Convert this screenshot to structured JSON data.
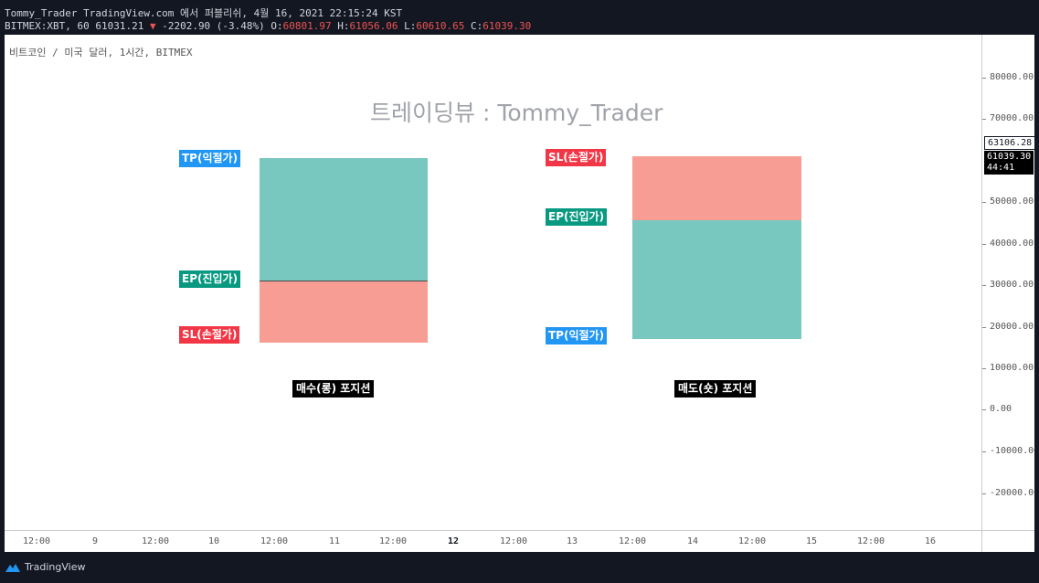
{
  "header": {
    "title_line": "Tommy_Trader TradingView.com 에서 퍼블리쉬, 4월 16, 2021 22:15:24 KST",
    "quote_prefix": "BITMEX:XBT, 60 61031.21",
    "change_arrow": "▼",
    "change_text": "-2202.90 (-3.48%)",
    "ohlc": {
      "o_label": "O:",
      "o_value": "60801.97",
      "h_label": "H:",
      "h_value": "61056.06",
      "l_label": "L:",
      "l_value": "60610.65",
      "c_label": "C:",
      "c_value": "61039.30"
    }
  },
  "chart": {
    "symbol_desc": "비트코인 / 미국 달러, 1시간, BITMEX",
    "watermark": "트레이딩뷰 : Tommy_Trader",
    "long_position": {
      "tp_label": "TP(익절가)",
      "ep_label": "EP(진입가)",
      "sl_label": "SL(손절가)",
      "caption": "매수(롱) 포지션"
    },
    "short_position": {
      "sl_label": "SL(손절가)",
      "ep_label": "EP(진입가)",
      "tp_label": "TP(익절가)",
      "caption": "매도(숏) 포지션"
    }
  },
  "price_scale": {
    "ticks": [
      "80000.00",
      "70000.00",
      "50000.00",
      "40000.00",
      "30000.00",
      "20000.00",
      "10000.00",
      "0.00",
      "-10000.00",
      "-20000.00"
    ],
    "label_upper": "63106.28",
    "label_price": "61039.30",
    "label_timer": "44:41"
  },
  "time_axis": {
    "ticks": [
      "12:00",
      "9",
      "12:00",
      "10",
      "12:00",
      "11",
      "12:00",
      "12",
      "12:00",
      "13",
      "12:00",
      "14",
      "12:00",
      "15",
      "12:00",
      "16"
    ],
    "bold_tick": "12"
  },
  "footer": {
    "brand": "TradingView"
  },
  "colors": {
    "profit_zone": "#79c8c0",
    "loss_zone": "#f79d93",
    "tp_tag": "#2196f3",
    "ep_tag": "#089981",
    "sl_tag": "#f23645"
  }
}
